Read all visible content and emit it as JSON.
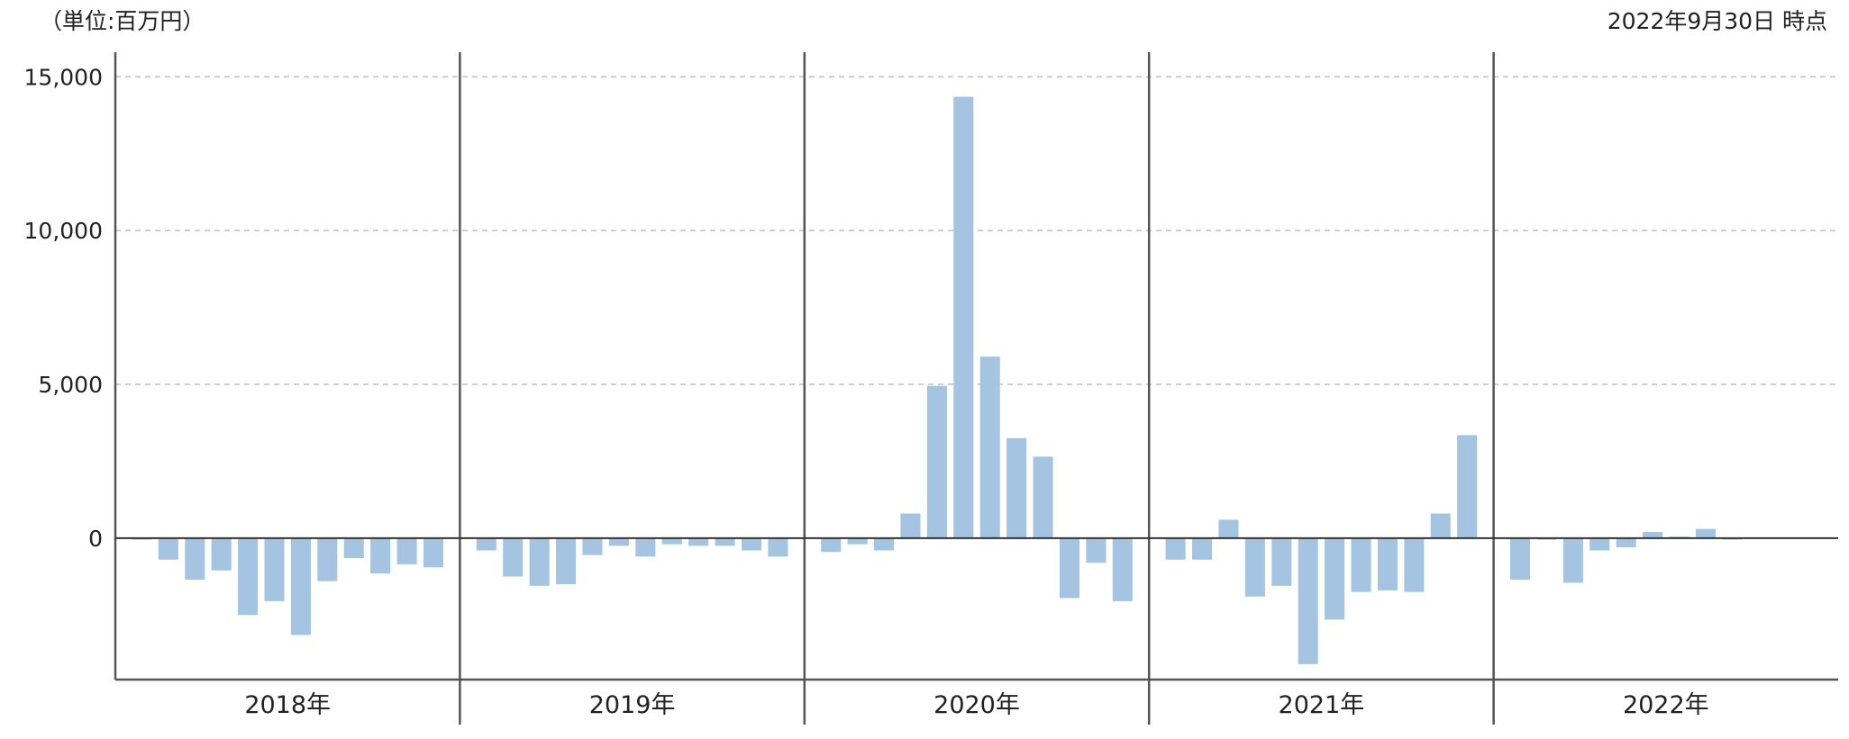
{
  "header": {
    "unit": "（単位:百万円）",
    "as_of": "2022年9月30日 時点"
  },
  "colors": {
    "bar": "#a4c4e2",
    "grid": "#bfbfbf",
    "axis": "#555555",
    "zero": "#333333"
  },
  "chart_data": {
    "type": "bar",
    "title": "",
    "xlabel": "",
    "ylabel": "",
    "ylim": [
      -4600,
      15800
    ],
    "yticks": [
      0,
      5000,
      10000,
      15000
    ],
    "ytick_labels": [
      "0",
      "5,000",
      "10,000",
      "15,000"
    ],
    "grid": true,
    "groups": [
      {
        "label": "2018年",
        "values": [
          -50,
          -700,
          -1350,
          -1050,
          -2500,
          -2050,
          -3150,
          -1400,
          -650,
          -1150,
          -850,
          -950
        ]
      },
      {
        "label": "2019年",
        "values": [
          -400,
          -1250,
          -1550,
          -1500,
          -550,
          -250,
          -600,
          -200,
          -250,
          -250,
          -400,
          -600
        ]
      },
      {
        "label": "2020年",
        "values": [
          -450,
          -200,
          -400,
          800,
          4950,
          14350,
          5900,
          3250,
          2650,
          -1950,
          -800,
          -2050
        ]
      },
      {
        "label": "2021年",
        "values": [
          -700,
          -700,
          600,
          -1900,
          -1550,
          -4100,
          -2650,
          -1750,
          -1700,
          -1750,
          800,
          3350
        ]
      },
      {
        "label": "2022年",
        "values": [
          -1350,
          -50,
          -1450,
          -400,
          -300,
          200,
          50,
          300,
          -50
        ]
      }
    ]
  }
}
